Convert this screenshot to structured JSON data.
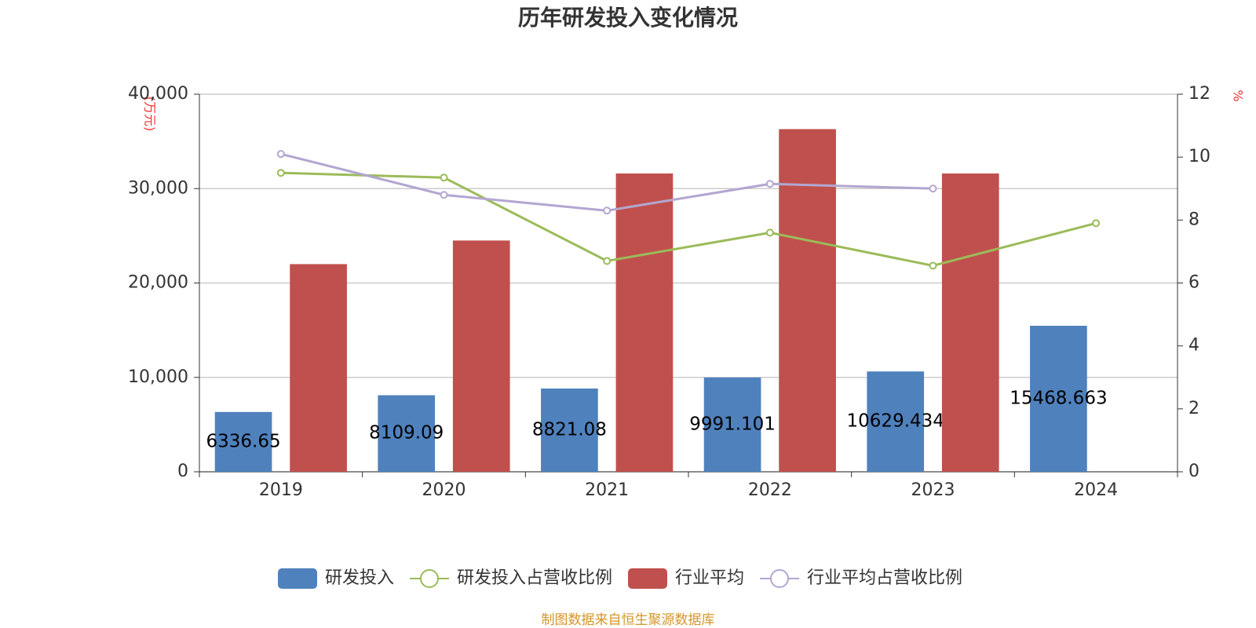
{
  "chart_data": {
    "type": "bar",
    "title": "历年研发投入变化情况",
    "y_label": "(万元)",
    "y2_label": "%",
    "source": "制图数据来自恒生聚源数据库",
    "categories": [
      "2019",
      "2020",
      "2021",
      "2022",
      "2023",
      "2024"
    ],
    "series": [
      {
        "name": "研发投入",
        "type": "bar",
        "color": "#4f81bd",
        "values": [
          6336.65,
          8109.09,
          8821.08,
          9991.101,
          10629.434,
          15468.663
        ]
      },
      {
        "name": "研发投入占营收比例",
        "type": "line",
        "axis": "y2",
        "color": "#9bbb59",
        "values": [
          9.5,
          9.35,
          6.7,
          7.6,
          6.55,
          7.9
        ]
      },
      {
        "name": "行业平均",
        "type": "bar",
        "color": "#c0504d",
        "values": [
          22000,
          24500,
          31600,
          36300,
          31600,
          null
        ]
      },
      {
        "name": "行业平均占营收比例",
        "type": "line",
        "axis": "y2",
        "color": "#b3a6d1",
        "values": [
          10.1,
          8.8,
          8.3,
          9.15,
          9.0,
          null
        ]
      }
    ],
    "ylim": [
      0,
      40000
    ],
    "yticks": [
      0,
      {
        "value": 10000,
        "label": "10,000"
      },
      {
        "value": 20000,
        "label": "20,000"
      },
      {
        "value": 30000,
        "label": "30,000"
      },
      {
        "value": 40000,
        "label": "40,000"
      }
    ],
    "y2lim": [
      0,
      12
    ],
    "y2ticks": [
      0,
      2,
      4,
      6,
      8,
      10,
      12
    ],
    "grid": true
  }
}
